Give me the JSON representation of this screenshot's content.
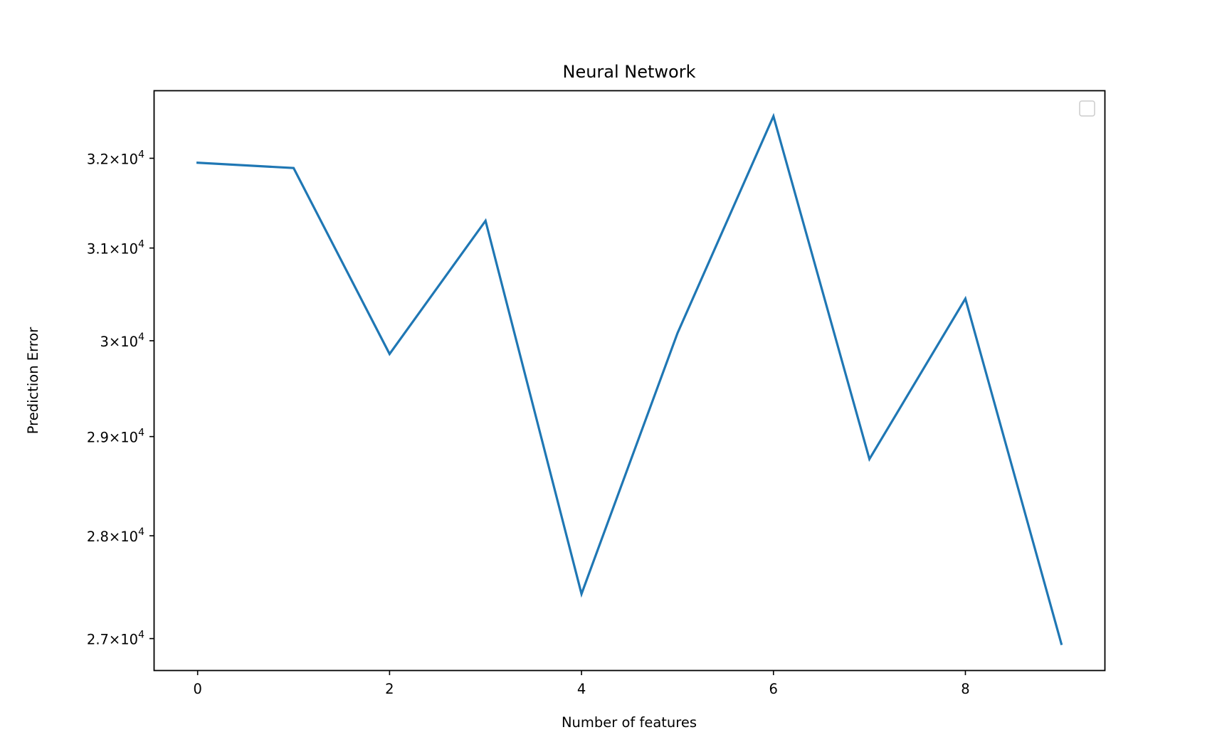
{
  "chart_data": {
    "type": "line",
    "title": "Neural Network",
    "xlabel": "Number of features",
    "ylabel": "Prediction Error",
    "x": [
      0,
      1,
      2,
      3,
      4,
      5,
      6,
      7,
      8,
      9
    ],
    "series": [
      {
        "values": [
          31950,
          31890,
          29860,
          31300,
          27430,
          30080,
          32480,
          28770,
          30450,
          26950
        ],
        "color": "#1f77b4"
      }
    ],
    "xlim": [
      -0.45,
      9.45
    ],
    "ylim": [
      26700,
      32770
    ],
    "yscale": "log",
    "xticks": [
      {
        "value": 0,
        "label": "0"
      },
      {
        "value": 2,
        "label": "2"
      },
      {
        "value": 4,
        "label": "4"
      },
      {
        "value": 6,
        "label": "6"
      },
      {
        "value": 8,
        "label": "8"
      }
    ],
    "yticks": [
      {
        "value": 27000,
        "mantissa": "2.7",
        "base": "10",
        "exp": "4"
      },
      {
        "value": 28000,
        "mantissa": "2.8",
        "base": "10",
        "exp": "4"
      },
      {
        "value": 29000,
        "mantissa": "2.9",
        "base": "10",
        "exp": "4"
      },
      {
        "value": 30000,
        "mantissa": "3",
        "base": "10",
        "exp": "4"
      },
      {
        "value": 31000,
        "mantissa": "3.1",
        "base": "10",
        "exp": "4"
      },
      {
        "value": 32000,
        "mantissa": "3.2",
        "base": "10",
        "exp": "4"
      }
    ],
    "grid": false,
    "legend": {
      "location": "upper right",
      "entries": []
    }
  }
}
